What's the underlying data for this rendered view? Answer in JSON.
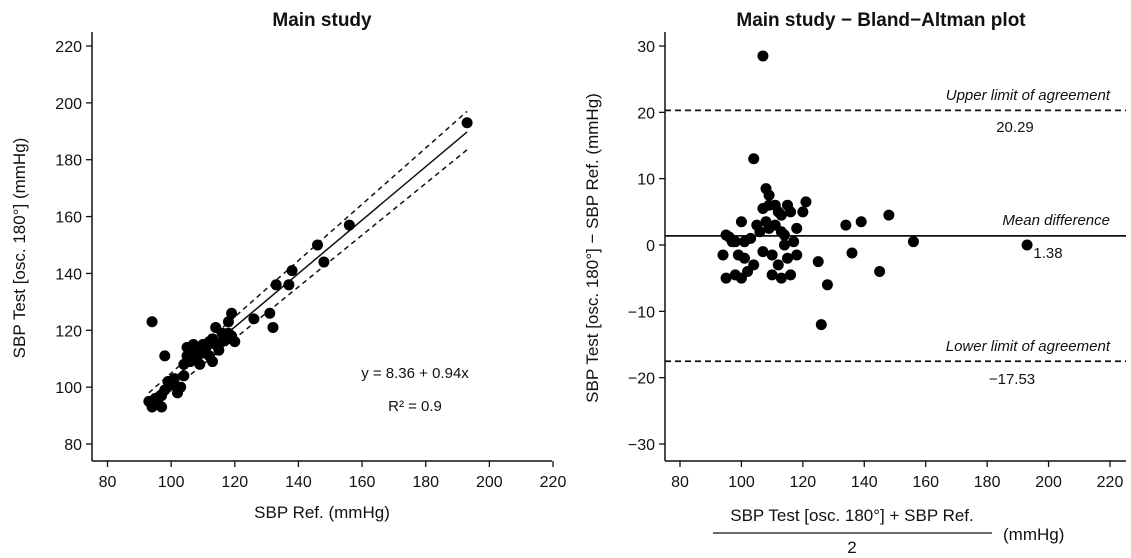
{
  "chart_data": [
    {
      "type": "scatter",
      "title": "Main study",
      "xlabel": "SBP Ref. (mmHg)",
      "ylabel": "SBP Test [osc. 180°] (mmHg)",
      "xlim": [
        90,
        220
      ],
      "ylim": [
        80,
        220
      ],
      "xticks": [
        80,
        100,
        120,
        140,
        160,
        180,
        200,
        220
      ],
      "yticks": [
        80,
        100,
        120,
        140,
        160,
        180,
        200,
        220
      ],
      "regression": {
        "intercept": 8.36,
        "slope": 0.94,
        "x_range": [
          93,
          193
        ]
      },
      "confidence_band": {
        "lower": [
          [
            93,
            92.5
          ],
          [
            193,
            183.5
          ]
        ],
        "upper": [
          [
            93,
            98
          ],
          [
            193,
            197
          ]
        ]
      },
      "equation_text": "y = 8.36 + 0.94x",
      "r2_text": "R² = 0.9",
      "points": [
        [
          93,
          95
        ],
        [
          94,
          93
        ],
        [
          94,
          123
        ],
        [
          95,
          96
        ],
        [
          96,
          94
        ],
        [
          97,
          93
        ],
        [
          97,
          97
        ],
        [
          98,
          111
        ],
        [
          98,
          99
        ],
        [
          99,
          102
        ],
        [
          100,
          101
        ],
        [
          101,
          103
        ],
        [
          102,
          98
        ],
        [
          103,
          100
        ],
        [
          104,
          108
        ],
        [
          104,
          104
        ],
        [
          105,
          114
        ],
        [
          105,
          111
        ],
        [
          106,
          113
        ],
        [
          106,
          109
        ],
        [
          107,
          115
        ],
        [
          107,
          112
        ],
        [
          108,
          114
        ],
        [
          108,
          110
        ],
        [
          109,
          108
        ],
        [
          110,
          112
        ],
        [
          110,
          115
        ],
        [
          111,
          114
        ],
        [
          112,
          116
        ],
        [
          112,
          111
        ],
        [
          113,
          117
        ],
        [
          113,
          109
        ],
        [
          114,
          121
        ],
        [
          114,
          115
        ],
        [
          115,
          113
        ],
        [
          116,
          119
        ],
        [
          116,
          116
        ],
        [
          117,
          117
        ],
        [
          118,
          123
        ],
        [
          118,
          119
        ],
        [
          119,
          126
        ],
        [
          119,
          118
        ],
        [
          120,
          116
        ],
        [
          126,
          124
        ],
        [
          131,
          126
        ],
        [
          132,
          121
        ],
        [
          133,
          136
        ],
        [
          137,
          136
        ],
        [
          138,
          141
        ],
        [
          146,
          150
        ],
        [
          148,
          144
        ],
        [
          156,
          157
        ],
        [
          193,
          193
        ]
      ]
    },
    {
      "type": "scatter",
      "title": "Main study − Bland−Altman plot",
      "ylabel": "SBP Test [osc. 180°] − SBP Ref. (mmHg)",
      "xlabel_numerator": "SBP Test [osc. 180°] + SBP Ref.",
      "xlabel_denominator": "2",
      "xlabel_unit": "(mmHg)",
      "xlim": [
        90,
        220
      ],
      "ylim": [
        -33,
        32
      ],
      "xticks": [
        80,
        100,
        120,
        140,
        160,
        180,
        200,
        220
      ],
      "yticks": [
        -30,
        -20,
        -10,
        0,
        10,
        20,
        30
      ],
      "mean_difference": 1.38,
      "upper_loa": 20.29,
      "lower_loa": -17.53,
      "labels": {
        "upper": "Upper limit of agreement",
        "upper_value": "20.29",
        "mean": "Mean difference",
        "mean_value": "1.38",
        "lower": "Lower limit of agreement",
        "lower_value": "−17.53"
      },
      "points": [
        [
          94,
          -1.5
        ],
        [
          95,
          1.5
        ],
        [
          95,
          -5
        ],
        [
          96,
          1.2
        ],
        [
          97,
          0.5
        ],
        [
          98,
          -4.5
        ],
        [
          98,
          0.5
        ],
        [
          99,
          -1.5
        ],
        [
          100,
          3.5
        ],
        [
          100,
          -5
        ],
        [
          101,
          0.5
        ],
        [
          101,
          -2
        ],
        [
          102,
          -4
        ],
        [
          103,
          1
        ],
        [
          104,
          13
        ],
        [
          104,
          -3
        ],
        [
          105,
          3
        ],
        [
          106,
          2
        ],
        [
          107,
          5.5
        ],
        [
          107,
          28.5
        ],
        [
          107,
          -1
        ],
        [
          108,
          8.5
        ],
        [
          108,
          3.5
        ],
        [
          109,
          7.5
        ],
        [
          109,
          6
        ],
        [
          109,
          2.5
        ],
        [
          110,
          -1.5
        ],
        [
          110,
          -4.5
        ],
        [
          111,
          6
        ],
        [
          111,
          3
        ],
        [
          112,
          5
        ],
        [
          112,
          -3
        ],
        [
          113,
          4.5
        ],
        [
          113,
          2
        ],
        [
          113,
          -5
        ],
        [
          114,
          1.5
        ],
        [
          114,
          0
        ],
        [
          115,
          6
        ],
        [
          115,
          -2
        ],
        [
          116,
          5
        ],
        [
          116,
          -4.5
        ],
        [
          117,
          0.5
        ],
        [
          118,
          2.5
        ],
        [
          118,
          -1.5
        ],
        [
          120,
          5
        ],
        [
          121,
          6.5
        ],
        [
          125,
          -2.5
        ],
        [
          126,
          -12
        ],
        [
          128,
          -6
        ],
        [
          134,
          3
        ],
        [
          136,
          -1.2
        ],
        [
          139,
          3.5
        ],
        [
          145,
          -4
        ],
        [
          148,
          4.5
        ],
        [
          156,
          0.5
        ],
        [
          193,
          0
        ]
      ]
    }
  ]
}
